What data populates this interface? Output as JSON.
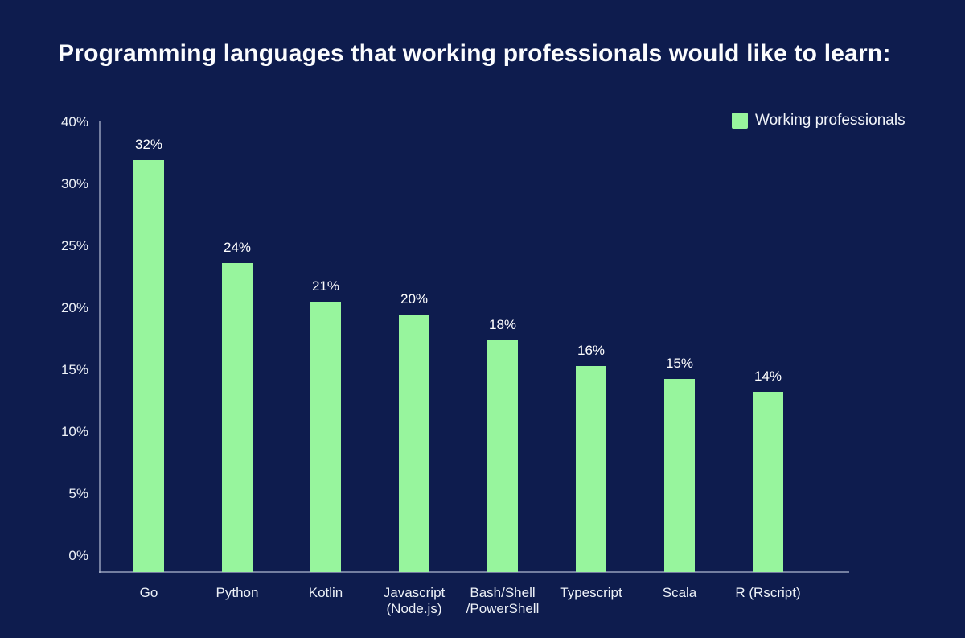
{
  "title": "Programming languages that working professionals would like to learn:",
  "legend": {
    "label": "Working professionals"
  },
  "colors": {
    "background": "#0E1C4E",
    "bar": "#97F59D",
    "axis_line": "#AAB4CD",
    "title_text": "#FBFCFE",
    "label_text": "#EDF1F7"
  },
  "y_axis": {
    "tick_labels_top_to_bottom": [
      "40%",
      "30%",
      "25%",
      "20%",
      "15%",
      "10%",
      "5%",
      "0%"
    ]
  },
  "chart_data": {
    "type": "bar",
    "title": "Programming languages that working professionals would like to learn:",
    "categories": [
      "Go",
      "Python",
      "Kotlin",
      "Javascript\n(Node.js)",
      "Bash/Shell\n/PowerShell",
      "Typescript",
      "Scala",
      "R (Rscript)"
    ],
    "values": [
      32,
      24,
      21,
      20,
      18,
      16,
      15,
      14
    ],
    "value_labels": [
      "32%",
      "24%",
      "21%",
      "20%",
      "18%",
      "16%",
      "15%",
      "14%"
    ],
    "series": [
      {
        "name": "Working professionals",
        "values": [
          32,
          24,
          21,
          20,
          18,
          16,
          15,
          14
        ]
      }
    ],
    "unit": "%",
    "xlabel": "",
    "ylabel": "",
    "ylim": [
      0,
      40
    ],
    "y_tick_labels_top_to_bottom": [
      "40%",
      "30%",
      "25%",
      "20%",
      "15%",
      "10%",
      "5%",
      "0%"
    ],
    "grid": false,
    "legend_entries": [
      "Working professionals"
    ],
    "legend_position": "top-right",
    "bar_color": "#97F59D",
    "background_color": "#0E1C4E"
  }
}
